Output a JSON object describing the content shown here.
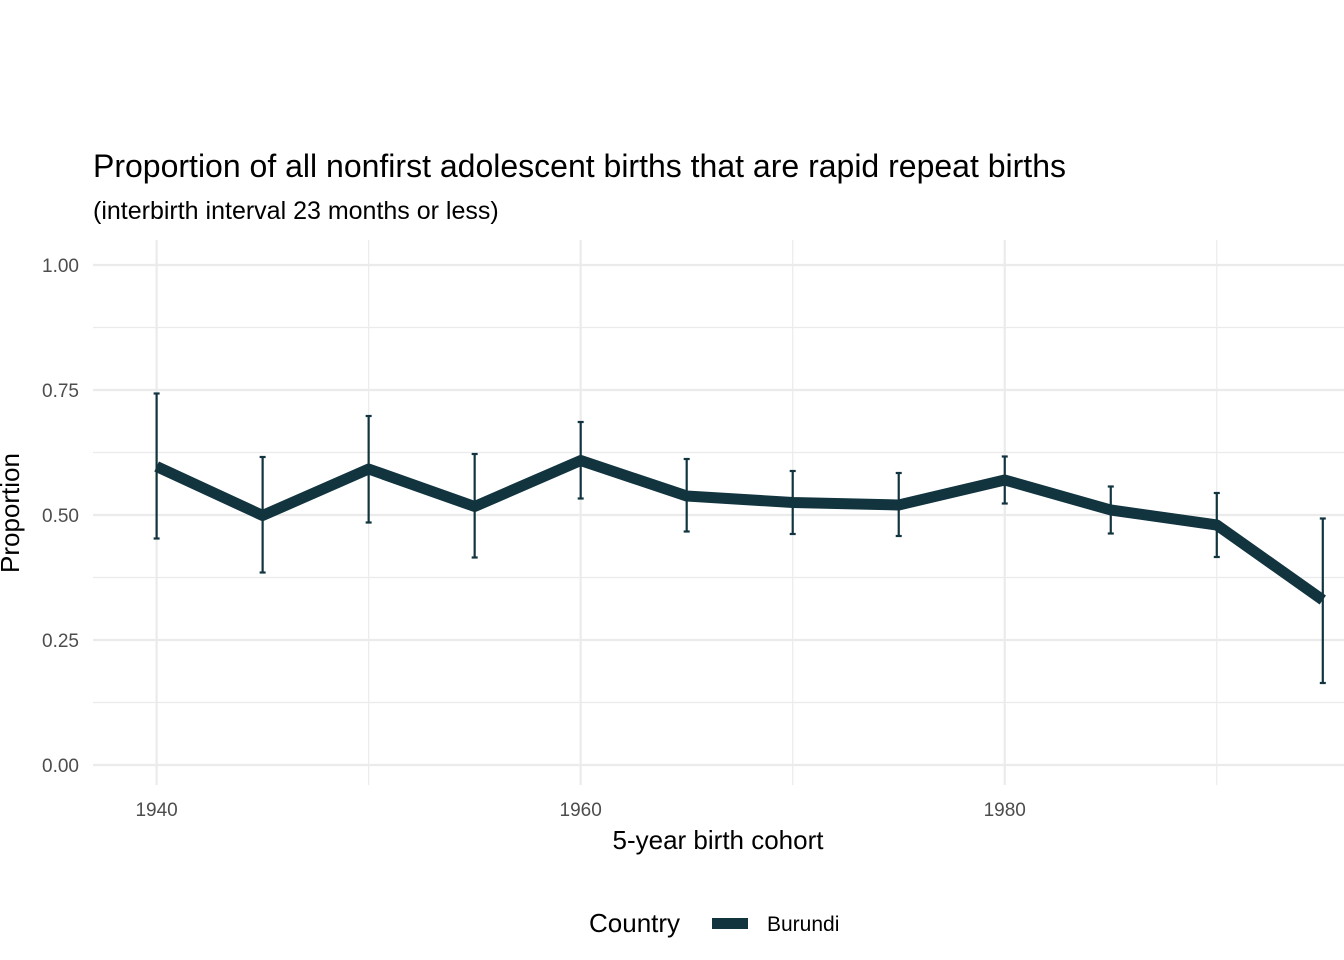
{
  "chart_data": {
    "type": "line",
    "title": "Proportion of all nonfirst adolescent births that are rapid repeat births",
    "subtitle": "(interbirth interval 23 months or less)",
    "xlabel": "5-year birth cohort",
    "ylabel": "Proportion",
    "xlim": [
      1937,
      1996
    ],
    "ylim": [
      -0.04,
      1.05
    ],
    "x_ticks": [
      1940,
      1960,
      1980
    ],
    "x_tick_labels": [
      "1940",
      "1960",
      "1980"
    ],
    "x_minor_ticks": [
      1950,
      1970,
      1990
    ],
    "y_ticks": [
      0,
      0.25,
      0.5,
      0.75,
      1
    ],
    "y_tick_labels": [
      "0.00",
      "0.25",
      "0.50",
      "0.75",
      "1.00"
    ],
    "y_minor_ticks": [
      0.125,
      0.375,
      0.625,
      0.875
    ],
    "grid": true,
    "legend": {
      "title": "Country",
      "position": "bottom"
    },
    "series": [
      {
        "name": "Burundi",
        "color": "#12343f",
        "x": [
          1940,
          1945,
          1950,
          1955,
          1960,
          1965,
          1970,
          1975,
          1980,
          1985,
          1990,
          1995
        ],
        "y": [
          0.597,
          0.499,
          0.592,
          0.517,
          0.609,
          0.538,
          0.525,
          0.52,
          0.57,
          0.51,
          0.48,
          0.33
        ],
        "lower": [
          0.453,
          0.385,
          0.485,
          0.415,
          0.533,
          0.467,
          0.462,
          0.458,
          0.523,
          0.463,
          0.416,
          0.164
        ],
        "upper": [
          0.743,
          0.616,
          0.698,
          0.622,
          0.686,
          0.612,
          0.588,
          0.584,
          0.617,
          0.557,
          0.544,
          0.493
        ]
      }
    ]
  }
}
